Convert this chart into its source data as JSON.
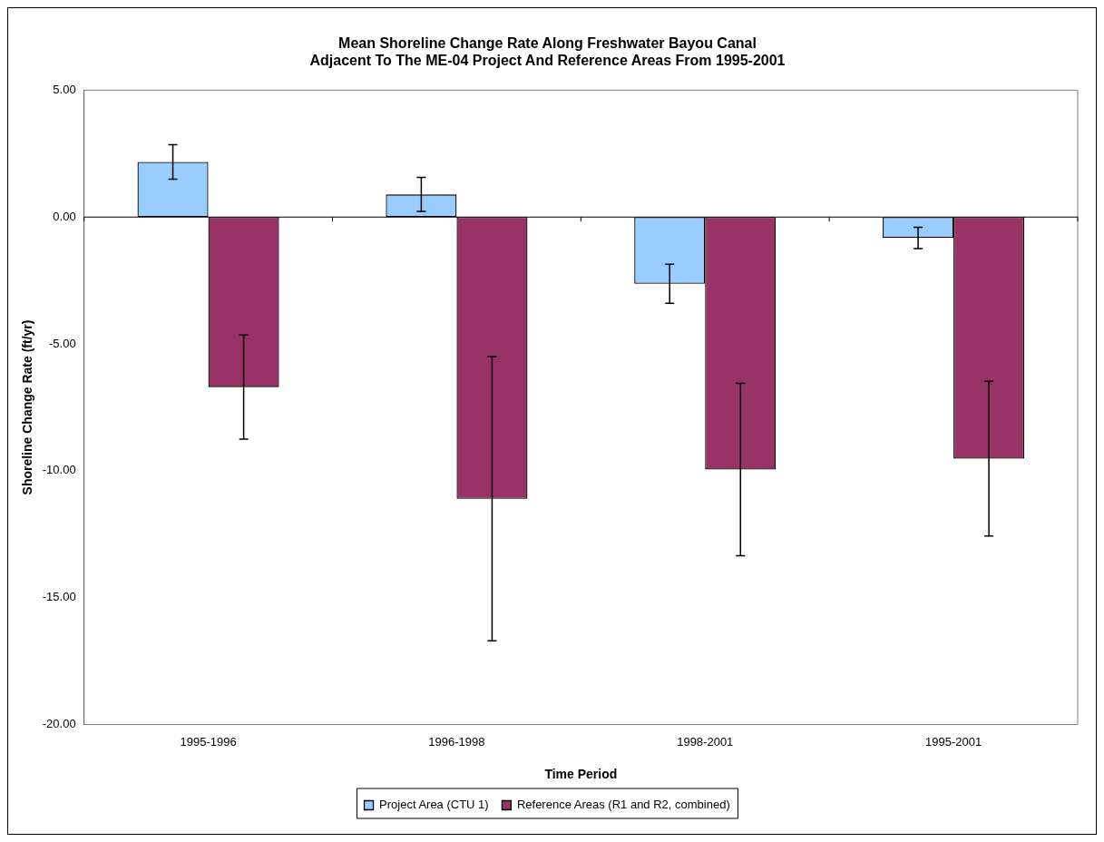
{
  "chart_data": {
    "type": "bar",
    "title": [
      "Mean Shoreline Change Rate Along Freshwater Bayou Canal",
      "Adjacent To The ME-04 Project And Reference Areas From 1995-2001"
    ],
    "xlabel": "Time Period",
    "ylabel": "Shoreline Change Rate (ft/yr)",
    "categories": [
      "1995-1996",
      "1996-1998",
      "1998-2001",
      "1995-2001"
    ],
    "series": [
      {
        "name": "Project Area (CTU 1)",
        "color": "#99ccff",
        "values": [
          2.17,
          0.89,
          -2.63,
          -0.82
        ],
        "errors": [
          0.68,
          0.67,
          0.77,
          0.42
        ]
      },
      {
        "name": "Reference Areas (R1 and R2, combined)",
        "color": "#993366",
        "values": [
          -6.7,
          -11.1,
          -9.95,
          -9.52
        ],
        "errors": [
          2.05,
          5.6,
          3.4,
          3.05
        ]
      }
    ],
    "ylim": [
      -20,
      5
    ],
    "yticks": [
      {
        "value": -20,
        "label": "-20.00"
      },
      {
        "value": -15,
        "label": "-15.00"
      },
      {
        "value": -10,
        "label": "-10.00"
      },
      {
        "value": -5,
        "label": "-5.00"
      },
      {
        "value": 0,
        "label": "0.00"
      },
      {
        "value": 5,
        "label": "5.00"
      }
    ],
    "legend": "bottom"
  }
}
